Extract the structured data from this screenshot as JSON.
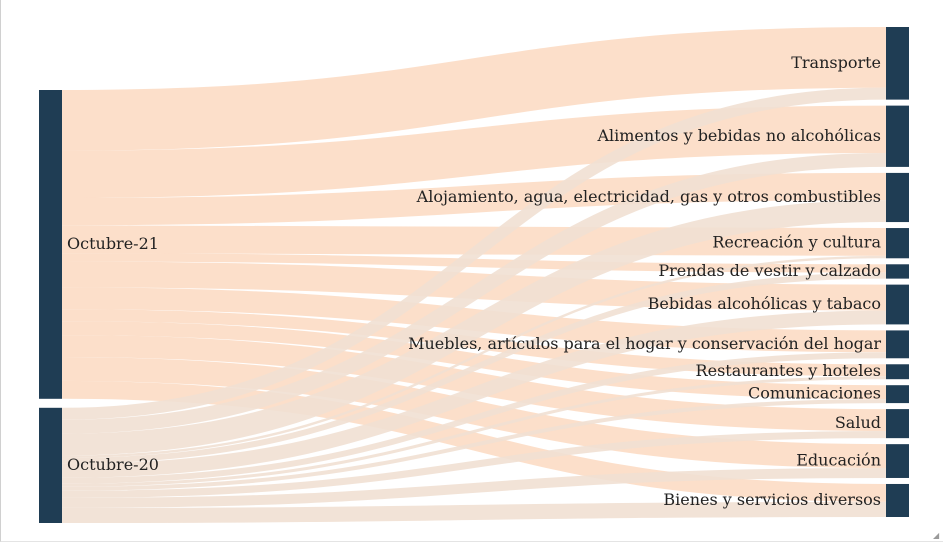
{
  "chart_data": {
    "type": "sankey",
    "sources": [
      {
        "name": "Octubre-21",
        "color": "#1f3d54"
      },
      {
        "name": "Octubre-20",
        "color": "#1f3d54"
      }
    ],
    "targets": [
      "Transporte",
      "Alimentos y bebidas no alcohólicas",
      "Alojamiento, agua, electricidad, gas y otros combustibles",
      "Recreación y cultura",
      "Prendas de vestir y calzado",
      "Bebidas alcohólicas y tabaco",
      "Muebles, artículos para el hogar y conservación del hogar",
      "Restaurantes y hoteles",
      "Comunicaciones",
      "Salud",
      "Educación",
      "Bienes y servicios diversos"
    ],
    "series": [
      {
        "name": "Octubre-21",
        "values": [
          30.5,
          23.8,
          13.7,
          14.0,
          4.2,
          13.0,
          11.0,
          6.0,
          7.0,
          11.0,
          12.0,
          9.0
        ],
        "link_color": "#fbd9c1"
      },
      {
        "name": "Octubre-20",
        "values": [
          6.0,
          7.0,
          11.0,
          1.2,
          3.0,
          7.0,
          3.0,
          1.5,
          2.0,
          3.6,
          5.0,
          7.6
        ],
        "link_color": "#f1e0d3"
      }
    ],
    "node_color": "#1f3d54"
  },
  "window": {
    "resize_glyph": "◢"
  }
}
